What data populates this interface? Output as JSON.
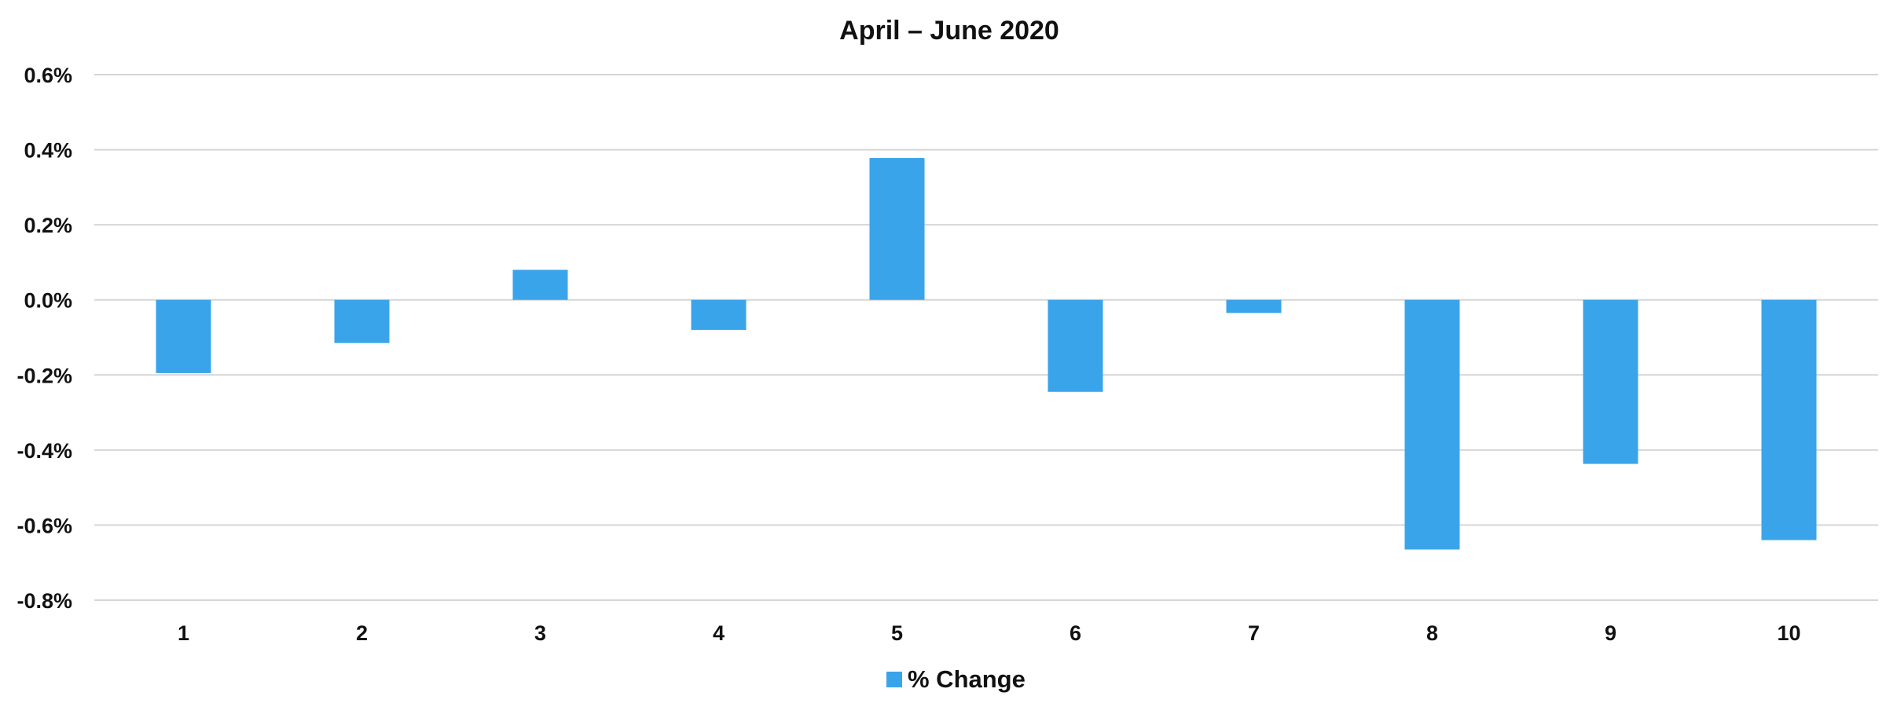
{
  "chart_data": {
    "type": "bar",
    "title": "April – June 2020",
    "xlabel": "",
    "ylabel": "",
    "categories": [
      "1",
      "2",
      "3",
      "4",
      "5",
      "6",
      "7",
      "8",
      "9",
      "10"
    ],
    "series": [
      {
        "name": "% Change",
        "values": [
          -0.195,
          -0.115,
          0.08,
          -0.08,
          0.378,
          -0.245,
          -0.035,
          -0.665,
          -0.437,
          -0.64
        ]
      }
    ],
    "ylim": [
      -0.8,
      0.6
    ],
    "yticks": [
      0.6,
      0.4,
      0.2,
      0.0,
      -0.2,
      -0.4,
      -0.6,
      -0.8
    ],
    "ytick_labels": [
      "0.6%",
      "0.4%",
      "0.2%",
      "0.0%",
      "-0.2%",
      "-0.4%",
      "-0.6%",
      "-0.8%"
    ],
    "grid": true,
    "legend_position": "bottom-center",
    "colors": {
      "bar": "#3aa4eb",
      "grid": "#d6d6d6",
      "text": "#111111"
    }
  }
}
